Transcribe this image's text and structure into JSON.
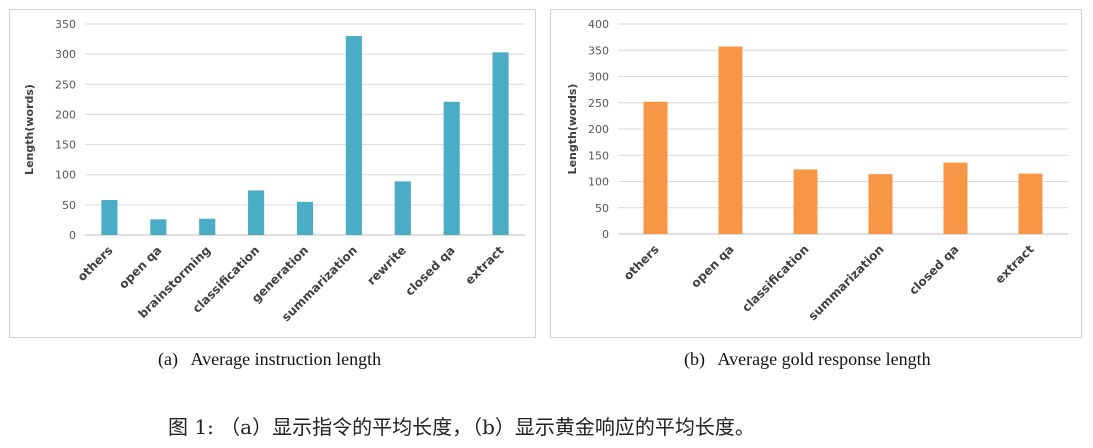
{
  "chart_data": [
    {
      "type": "bar",
      "categories": [
        "others",
        "open qa",
        "brainstorming",
        "classification",
        "generation",
        "summarization",
        "rewrite",
        "closed qa",
        "extract"
      ],
      "values": [
        58,
        26,
        27,
        74,
        55,
        330,
        89,
        221,
        303
      ],
      "ylabel": "Length(words)",
      "ylim": [
        0,
        350
      ],
      "yticks": [
        0,
        50,
        100,
        150,
        200,
        250,
        300,
        350
      ],
      "color": "#4bacc6",
      "caption": "(a)   Average instruction length",
      "grid": true,
      "legend": false
    },
    {
      "type": "bar",
      "categories": [
        "others",
        "open qa",
        "classification",
        "summarization",
        "closed qa",
        "extract"
      ],
      "values": [
        252,
        357,
        123,
        114,
        136,
        115
      ],
      "ylabel": "Length(words)",
      "ylim": [
        0,
        400
      ],
      "yticks": [
        0,
        50,
        100,
        150,
        200,
        250,
        300,
        350,
        400
      ],
      "color": "#f79646",
      "caption": "(b)   Average gold response length",
      "grid": true,
      "legend": false
    }
  ],
  "figure_caption": "图 1: （a）显示指令的平均长度，（b）显示黄金响应的平均长度。"
}
